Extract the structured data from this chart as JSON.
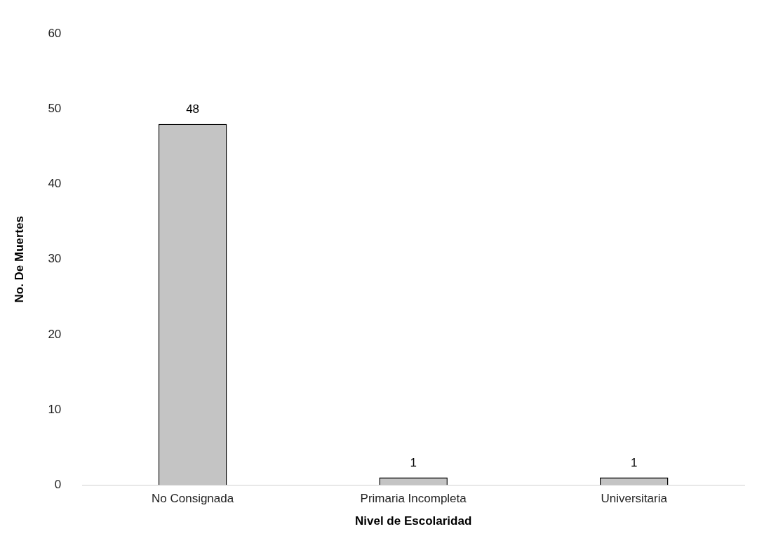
{
  "chart_data": {
    "type": "bar",
    "xlabel": "Nivel de Escolaridad",
    "ylabel": "No. De Muertes",
    "categories": [
      "No Consignada",
      "Primaria Incompleta",
      "Universitaria"
    ],
    "values": [
      48,
      1,
      1
    ],
    "color": "#c4c4c4",
    "ylim": [
      0,
      60
    ],
    "yticks": [
      0,
      10,
      20,
      30,
      40,
      50,
      60
    ],
    "grid": false,
    "legend": false,
    "data_labels": true
  }
}
